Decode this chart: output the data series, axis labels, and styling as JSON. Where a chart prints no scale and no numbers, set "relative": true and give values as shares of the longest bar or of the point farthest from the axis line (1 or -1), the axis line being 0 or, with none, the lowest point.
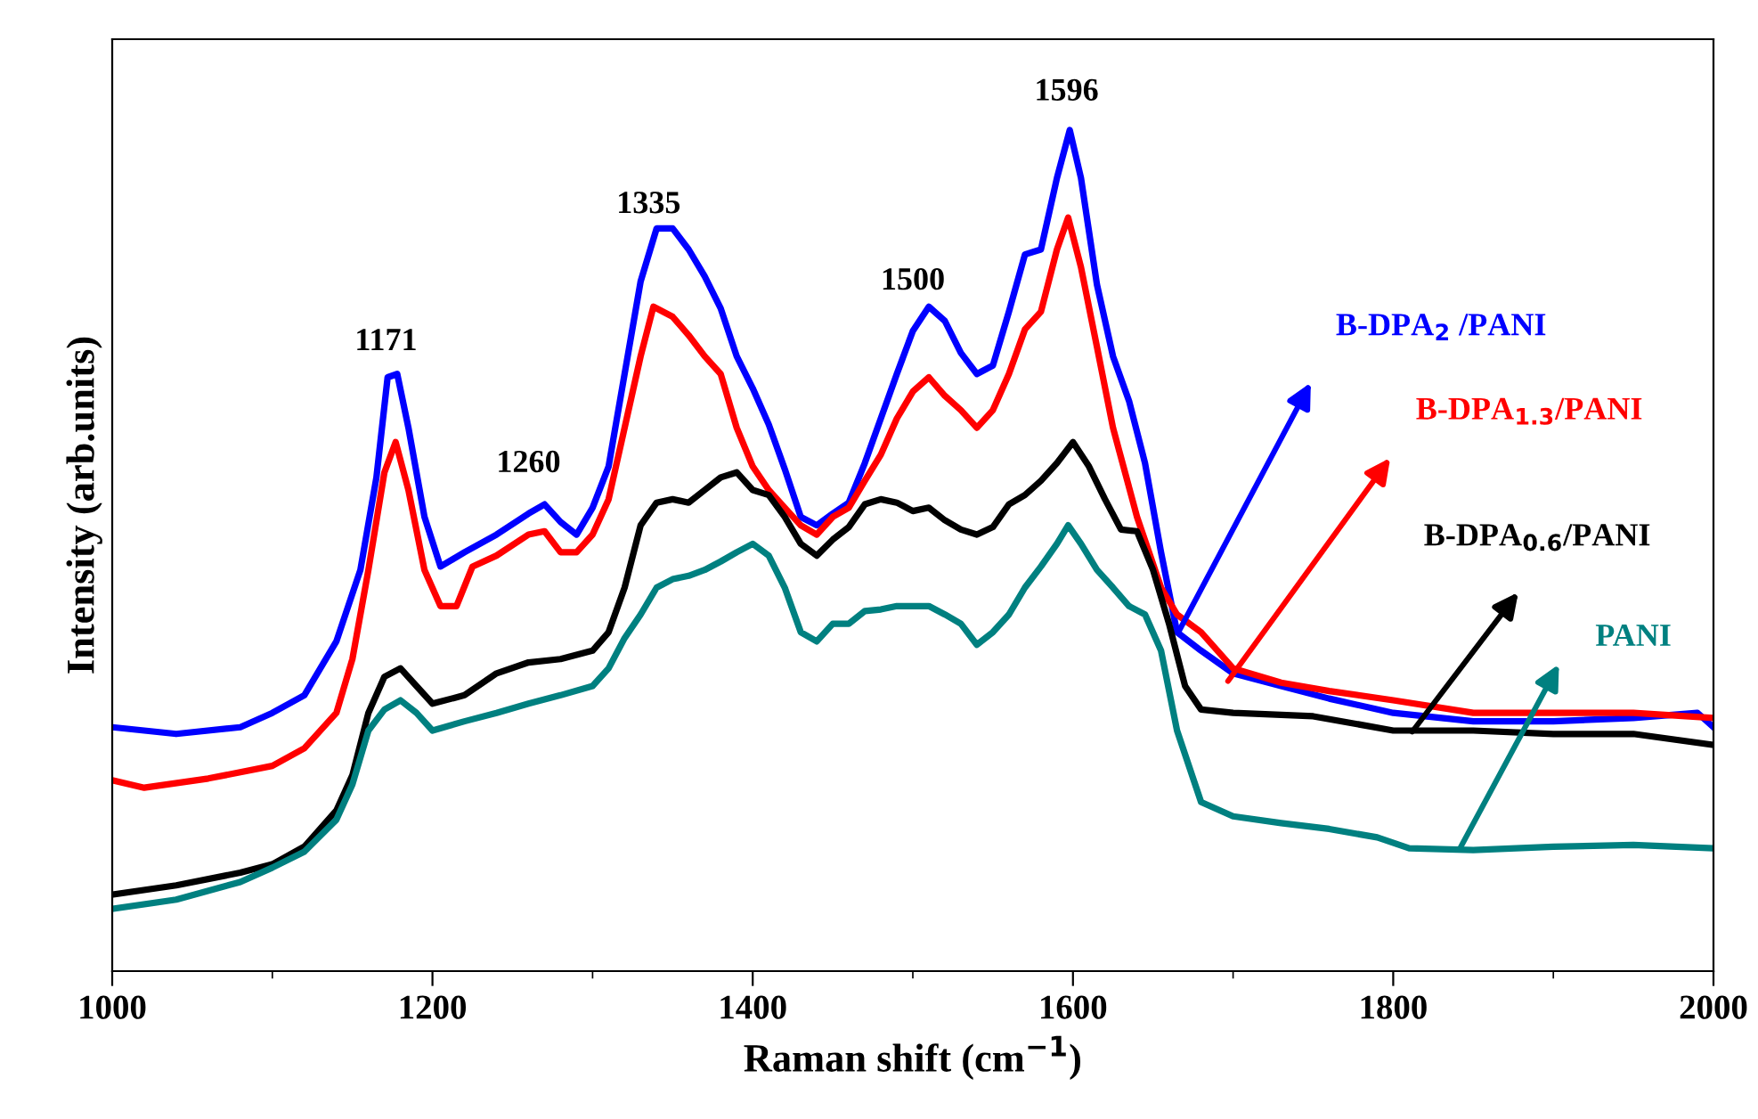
{
  "chart_data": {
    "type": "line",
    "relative": true,
    "xlabel": "Raman shift (cm$^{−1}$)",
    "ylabel": "Intensity (arb.units)",
    "xlim": [
      1000,
      2000
    ],
    "xticks": [
      1000,
      1200,
      1400,
      1600,
      1800,
      2000
    ],
    "grid": false,
    "legend": false,
    "marker": "none",
    "line_style": "solid",
    "annotations": [
      {
        "text": "1171",
        "x": 1171,
        "y": 0.689
      },
      {
        "text": "1260",
        "x": 1260,
        "y": 0.544
      },
      {
        "text": "1335",
        "x": 1335,
        "y": 0.852
      },
      {
        "text": "1500",
        "x": 1500,
        "y": 0.761
      },
      {
        "text": "1596",
        "x": 1596,
        "y": 0.986
      }
    ],
    "series": [
      {
        "name": "B-DPA$_{2}$ /PANI",
        "color": "#0000ff",
        "x": [
          1000,
          1040,
          1080,
          1100,
          1120,
          1140,
          1155,
          1165,
          1172,
          1178,
          1185,
          1195,
          1205,
          1220,
          1240,
          1260,
          1270,
          1280,
          1290,
          1300,
          1310,
          1320,
          1330,
          1340,
          1350,
          1360,
          1370,
          1380,
          1390,
          1400,
          1410,
          1420,
          1430,
          1440,
          1450,
          1460,
          1470,
          1480,
          1490,
          1500,
          1510,
          1520,
          1530,
          1540,
          1550,
          1560,
          1570,
          1580,
          1590,
          1598,
          1605,
          1615,
          1625,
          1635,
          1645,
          1655,
          1665,
          1680,
          1700,
          1730,
          1760,
          1800,
          1850,
          1900,
          1950,
          1990,
          2000
        ],
        "values": [
          0.29,
          0.282,
          0.29,
          0.307,
          0.328,
          0.392,
          0.477,
          0.587,
          0.706,
          0.71,
          0.646,
          0.54,
          0.481,
          0.498,
          0.519,
          0.544,
          0.555,
          0.534,
          0.519,
          0.551,
          0.6,
          0.71,
          0.82,
          0.883,
          0.883,
          0.858,
          0.826,
          0.788,
          0.731,
          0.693,
          0.65,
          0.597,
          0.54,
          0.53,
          0.544,
          0.557,
          0.604,
          0.657,
          0.71,
          0.761,
          0.79,
          0.773,
          0.735,
          0.71,
          0.72,
          0.784,
          0.852,
          0.858,
          0.943,
          1.0,
          0.943,
          0.816,
          0.731,
          0.678,
          0.604,
          0.498,
          0.403,
          0.381,
          0.354,
          0.339,
          0.324,
          0.307,
          0.297,
          0.297,
          0.301,
          0.307,
          0.29
        ]
      },
      {
        "name": "B-DPA$_{1.3}$/PANI",
        "color": "#ff0000",
        "x": [
          1000,
          1020,
          1060,
          1100,
          1120,
          1140,
          1150,
          1160,
          1170,
          1177,
          1185,
          1195,
          1205,
          1215,
          1225,
          1240,
          1260,
          1270,
          1280,
          1290,
          1300,
          1310,
          1320,
          1330,
          1338,
          1350,
          1360,
          1370,
          1380,
          1390,
          1400,
          1410,
          1420,
          1430,
          1440,
          1450,
          1460,
          1470,
          1480,
          1490,
          1500,
          1510,
          1520,
          1530,
          1540,
          1550,
          1560,
          1570,
          1580,
          1590,
          1597,
          1605,
          1615,
          1625,
          1640,
          1655,
          1665,
          1680,
          1700,
          1730,
          1760,
          1800,
          1850,
          1900,
          1950,
          2000
        ],
        "values": [
          0.227,
          0.218,
          0.229,
          0.244,
          0.265,
          0.307,
          0.371,
          0.477,
          0.593,
          0.629,
          0.572,
          0.477,
          0.434,
          0.434,
          0.481,
          0.494,
          0.519,
          0.523,
          0.498,
          0.498,
          0.519,
          0.561,
          0.646,
          0.731,
          0.79,
          0.778,
          0.756,
          0.731,
          0.71,
          0.646,
          0.6,
          0.572,
          0.551,
          0.53,
          0.519,
          0.54,
          0.551,
          0.583,
          0.614,
          0.657,
          0.689,
          0.706,
          0.684,
          0.667,
          0.646,
          0.667,
          0.71,
          0.763,
          0.784,
          0.858,
          0.896,
          0.837,
          0.742,
          0.646,
          0.54,
          0.456,
          0.424,
          0.403,
          0.36,
          0.343,
          0.333,
          0.322,
          0.307,
          0.307,
          0.307,
          0.301
        ]
      },
      {
        "name": "B-DPA$_{0.6}$/PANI",
        "color": "#000000",
        "x": [
          1000,
          1040,
          1080,
          1100,
          1120,
          1140,
          1150,
          1160,
          1170,
          1180,
          1190,
          1200,
          1220,
          1240,
          1260,
          1280,
          1300,
          1310,
          1320,
          1330,
          1340,
          1350,
          1360,
          1370,
          1380,
          1390,
          1400,
          1410,
          1420,
          1430,
          1440,
          1450,
          1460,
          1470,
          1480,
          1490,
          1500,
          1510,
          1520,
          1530,
          1540,
          1550,
          1560,
          1570,
          1580,
          1590,
          1600,
          1610,
          1620,
          1630,
          1640,
          1650,
          1660,
          1670,
          1680,
          1700,
          1750,
          1800,
          1850,
          1900,
          1950,
          2000
        ],
        "values": [
          0.091,
          0.102,
          0.117,
          0.127,
          0.148,
          0.191,
          0.233,
          0.307,
          0.35,
          0.36,
          0.339,
          0.318,
          0.328,
          0.354,
          0.367,
          0.371,
          0.381,
          0.403,
          0.456,
          0.53,
          0.557,
          0.561,
          0.557,
          0.572,
          0.587,
          0.593,
          0.572,
          0.566,
          0.54,
          0.508,
          0.494,
          0.513,
          0.528,
          0.555,
          0.561,
          0.557,
          0.547,
          0.551,
          0.536,
          0.525,
          0.519,
          0.528,
          0.555,
          0.566,
          0.583,
          0.604,
          0.629,
          0.6,
          0.561,
          0.525,
          0.523,
          0.477,
          0.413,
          0.339,
          0.311,
          0.307,
          0.303,
          0.286,
          0.286,
          0.282,
          0.282,
          0.269
        ]
      },
      {
        "name": "PANI",
        "color": "#008080",
        "x": [
          1000,
          1040,
          1080,
          1100,
          1120,
          1140,
          1150,
          1160,
          1170,
          1180,
          1190,
          1200,
          1220,
          1240,
          1260,
          1280,
          1300,
          1310,
          1320,
          1330,
          1340,
          1350,
          1360,
          1370,
          1380,
          1390,
          1400,
          1410,
          1420,
          1430,
          1440,
          1450,
          1460,
          1470,
          1480,
          1490,
          1500,
          1510,
          1520,
          1530,
          1540,
          1550,
          1560,
          1570,
          1580,
          1590,
          1597,
          1605,
          1615,
          1625,
          1635,
          1645,
          1655,
          1665,
          1680,
          1700,
          1730,
          1760,
          1790,
          1810,
          1850,
          1900,
          1950,
          2000
        ],
        "values": [
          0.074,
          0.085,
          0.106,
          0.123,
          0.142,
          0.18,
          0.222,
          0.286,
          0.311,
          0.322,
          0.307,
          0.286,
          0.297,
          0.307,
          0.318,
          0.328,
          0.339,
          0.36,
          0.396,
          0.424,
          0.456,
          0.466,
          0.47,
          0.477,
          0.487,
          0.498,
          0.508,
          0.494,
          0.456,
          0.403,
          0.392,
          0.413,
          0.413,
          0.428,
          0.43,
          0.434,
          0.434,
          0.434,
          0.424,
          0.413,
          0.388,
          0.403,
          0.424,
          0.456,
          0.481,
          0.508,
          0.53,
          0.508,
          0.477,
          0.456,
          0.434,
          0.424,
          0.381,
          0.286,
          0.201,
          0.184,
          0.176,
          0.169,
          0.159,
          0.146,
          0.144,
          0.148,
          0.15,
          0.146
        ]
      }
    ]
  }
}
